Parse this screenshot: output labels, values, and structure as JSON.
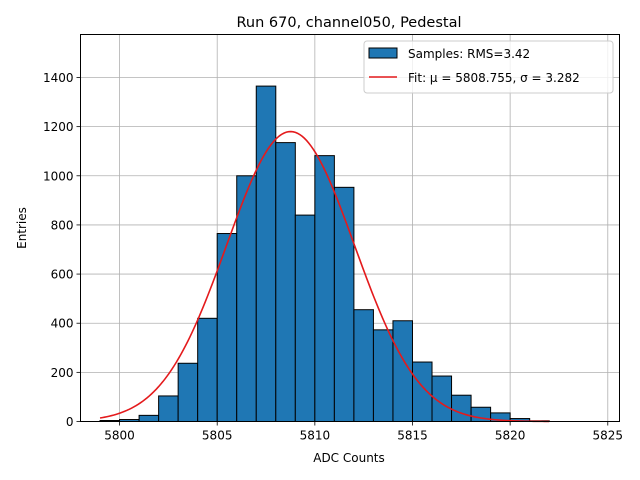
{
  "chart_data": {
    "type": "bar",
    "title": "Run 670, channel050, Pedestal",
    "xlabel": "ADC Counts",
    "ylabel": "Entries",
    "xlim": [
      5798.0,
      5825.6
    ],
    "ylim": [
      0,
      1575
    ],
    "grid": true,
    "legend_position": "top-right",
    "x_ticks": [
      5800,
      5805,
      5810,
      5815,
      5820,
      5825
    ],
    "y_ticks": [
      0,
      200,
      400,
      600,
      800,
      1000,
      1200,
      1400
    ],
    "histogram": {
      "name": "Samples: RMS=3.42",
      "bin_edges": [
        5799,
        5800,
        5801,
        5802,
        5803,
        5804,
        5805,
        5806,
        5807,
        5808,
        5809,
        5810,
        5811,
        5812,
        5813,
        5814,
        5815,
        5816,
        5817,
        5818,
        5819,
        5820,
        5821,
        5822
      ],
      "values": [
        4,
        8,
        25,
        104,
        237,
        420,
        765,
        1000,
        1365,
        1135,
        840,
        1082,
        953,
        455,
        373,
        410,
        242,
        185,
        107,
        58,
        35,
        12,
        3
      ],
      "color": "#1f77b4",
      "edge_color": "#000000"
    },
    "fit": {
      "legend_label": "Fit: μ = 5808.755, σ = 3.282",
      "mu": 5808.755,
      "sigma": 3.282,
      "amplitude": 1180,
      "x_range": [
        5799,
        5822
      ],
      "color": "#e41a1c"
    }
  }
}
